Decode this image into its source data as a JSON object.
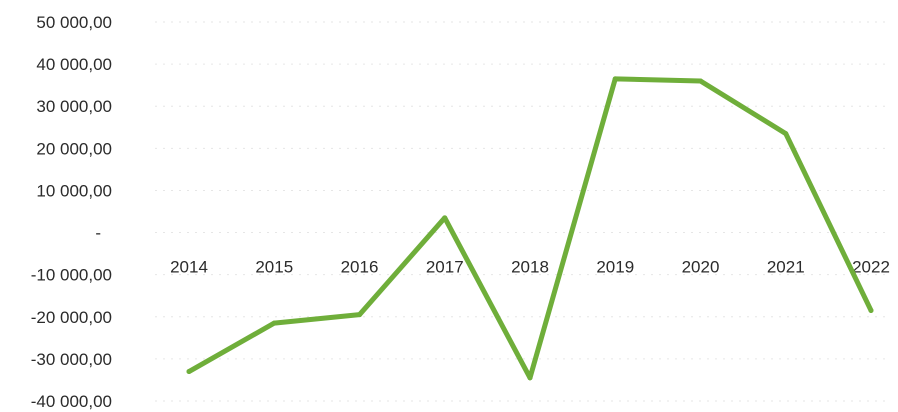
{
  "chart_data": {
    "type": "line",
    "title": "",
    "xlabel": "",
    "ylabel": "",
    "categories": [
      "2014",
      "2015",
      "2016",
      "2017",
      "2018",
      "2019",
      "2020",
      "2021",
      "2022"
    ],
    "series": [
      {
        "values": [
          -33000,
          -21500,
          -19500,
          3500,
          -34500,
          36500,
          36000,
          23500,
          -18500
        ],
        "color": "#6fae3a"
      }
    ],
    "ylim": [
      -40000,
      50000
    ],
    "y_ticks": [
      {
        "value": 50000,
        "label": "50 000,00"
      },
      {
        "value": 40000,
        "label": "40 000,00"
      },
      {
        "value": 30000,
        "label": "30 000,00"
      },
      {
        "value": 20000,
        "label": "20 000,00"
      },
      {
        "value": 10000,
        "label": "10 000,00"
      },
      {
        "value": 0,
        "label": "-"
      },
      {
        "value": -10000,
        "label": "-10 000,00"
      },
      {
        "value": -20000,
        "label": "-20 000,00"
      },
      {
        "value": -30000,
        "label": "-30 000,00"
      },
      {
        "value": -40000,
        "label": "-40 000,00"
      }
    ],
    "x_labels_at": 0,
    "grid": true,
    "legend": "none"
  }
}
